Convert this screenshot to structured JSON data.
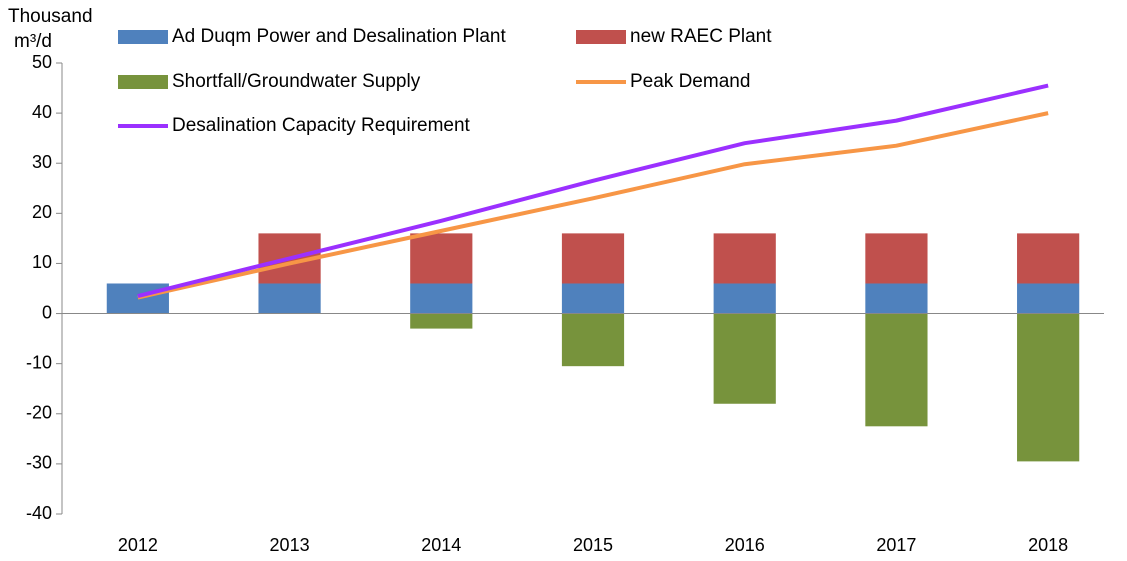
{
  "chart_data": {
    "type": "bar",
    "y_label": [
      "Thousand",
      "m³/d"
    ],
    "categories": [
      "2012",
      "2013",
      "2014",
      "2015",
      "2016",
      "2017",
      "2018"
    ],
    "series": [
      {
        "name": "Ad Duqm Power and Desalination Plant",
        "type": "bar",
        "color": "#4f81bd",
        "values": [
          6,
          6,
          6,
          6,
          6,
          6,
          6
        ]
      },
      {
        "name": "new RAEC Plant",
        "type": "bar",
        "color": "#c0504d",
        "values": [
          0,
          10,
          10,
          10,
          10,
          10,
          10
        ]
      },
      {
        "name": "Shortfall/Groundwater Supply",
        "type": "bar",
        "color": "#77933c",
        "values": [
          0,
          0,
          -3,
          -10.5,
          -18,
          -22.5,
          -29.5
        ]
      },
      {
        "name": "Peak Demand",
        "type": "line",
        "color": "#f79646",
        "values": [
          3.2,
          10,
          16.5,
          23,
          29.8,
          33.5,
          40
        ]
      },
      {
        "name": "Desalination Capacity Requirement",
        "type": "line",
        "color": "#9b30ff",
        "values": [
          3.5,
          11,
          18.5,
          26.5,
          34,
          38.5,
          45.5
        ]
      }
    ],
    "ylim": [
      -40,
      50
    ],
    "yticks": [
      50,
      40,
      30,
      20,
      10,
      0,
      -10,
      -20,
      -30,
      -40
    ]
  }
}
